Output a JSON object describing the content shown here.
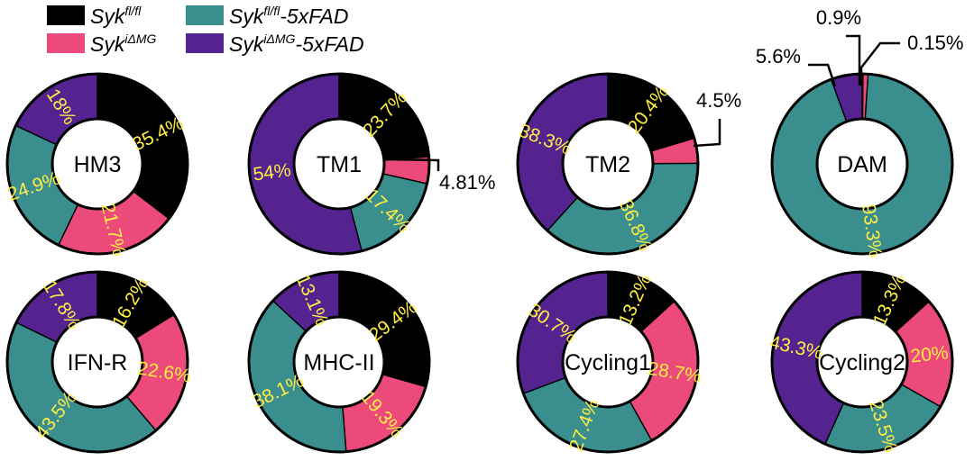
{
  "chart_data": {
    "type": "donut",
    "legend": [
      {
        "base": "Syk",
        "sup": "fl/fl",
        "suffix": "",
        "color": "#000000"
      },
      {
        "base": "Syk",
        "sup": "iΔMG",
        "suffix": "",
        "color": "#ec4a7a"
      },
      {
        "base": "Syk",
        "sup": "fl/fl",
        "suffix": "-5xFAD",
        "color": "#3a8e8e"
      },
      {
        "base": "Syk",
        "sup": "iΔMG",
        "suffix": "-5xFAD",
        "color": "#55238f"
      }
    ],
    "series_names": [
      "Syk fl/fl",
      "Syk iΔMG",
      "Syk fl/fl-5xFAD",
      "Syk iΔMG-5xFAD"
    ],
    "label_color": "#ffee44",
    "outline_color": "#000000",
    "charts": [
      {
        "name": "HM3",
        "values": [
          35.4,
          21.7,
          24.9,
          18
        ],
        "labels": [
          "35.4%",
          "21.7%",
          "24.9%",
          "18%"
        ]
      },
      {
        "name": "TM1",
        "values": [
          23.7,
          4.81,
          17.4,
          54
        ],
        "labels": [
          "23.7%",
          "4.81%",
          "17.4%",
          "54%"
        ]
      },
      {
        "name": "TM2",
        "values": [
          20.4,
          4.5,
          36.8,
          38.3
        ],
        "labels": [
          "20.4%",
          "4.5%",
          "36.8%",
          "38.3%"
        ]
      },
      {
        "name": "DAM",
        "values": [
          0.15,
          0.9,
          93.3,
          5.6
        ],
        "labels": [
          "0.15%",
          "0.9%",
          "93.3%",
          "5.6%"
        ]
      },
      {
        "name": "IFN-R",
        "values": [
          16.2,
          22.6,
          43.5,
          17.8
        ],
        "labels": [
          "16.2%",
          "22.6%",
          "43.5%",
          "17.8%"
        ]
      },
      {
        "name": "MHC-II",
        "values": [
          29.4,
          19.3,
          38.1,
          13.1
        ],
        "labels": [
          "29.4%",
          "19.3%",
          "38.1%",
          "13.1%"
        ]
      },
      {
        "name": "Cycling1",
        "values": [
          13.2,
          28.7,
          27.4,
          30.7
        ],
        "labels": [
          "13.2%",
          "28.7%",
          "27.4%",
          "30.7%"
        ]
      },
      {
        "name": "Cycling2",
        "values": [
          13.3,
          20,
          23.5,
          43.3
        ],
        "labels": [
          "13.3%",
          "20%",
          "23.5%",
          "43.3%"
        ]
      }
    ]
  }
}
